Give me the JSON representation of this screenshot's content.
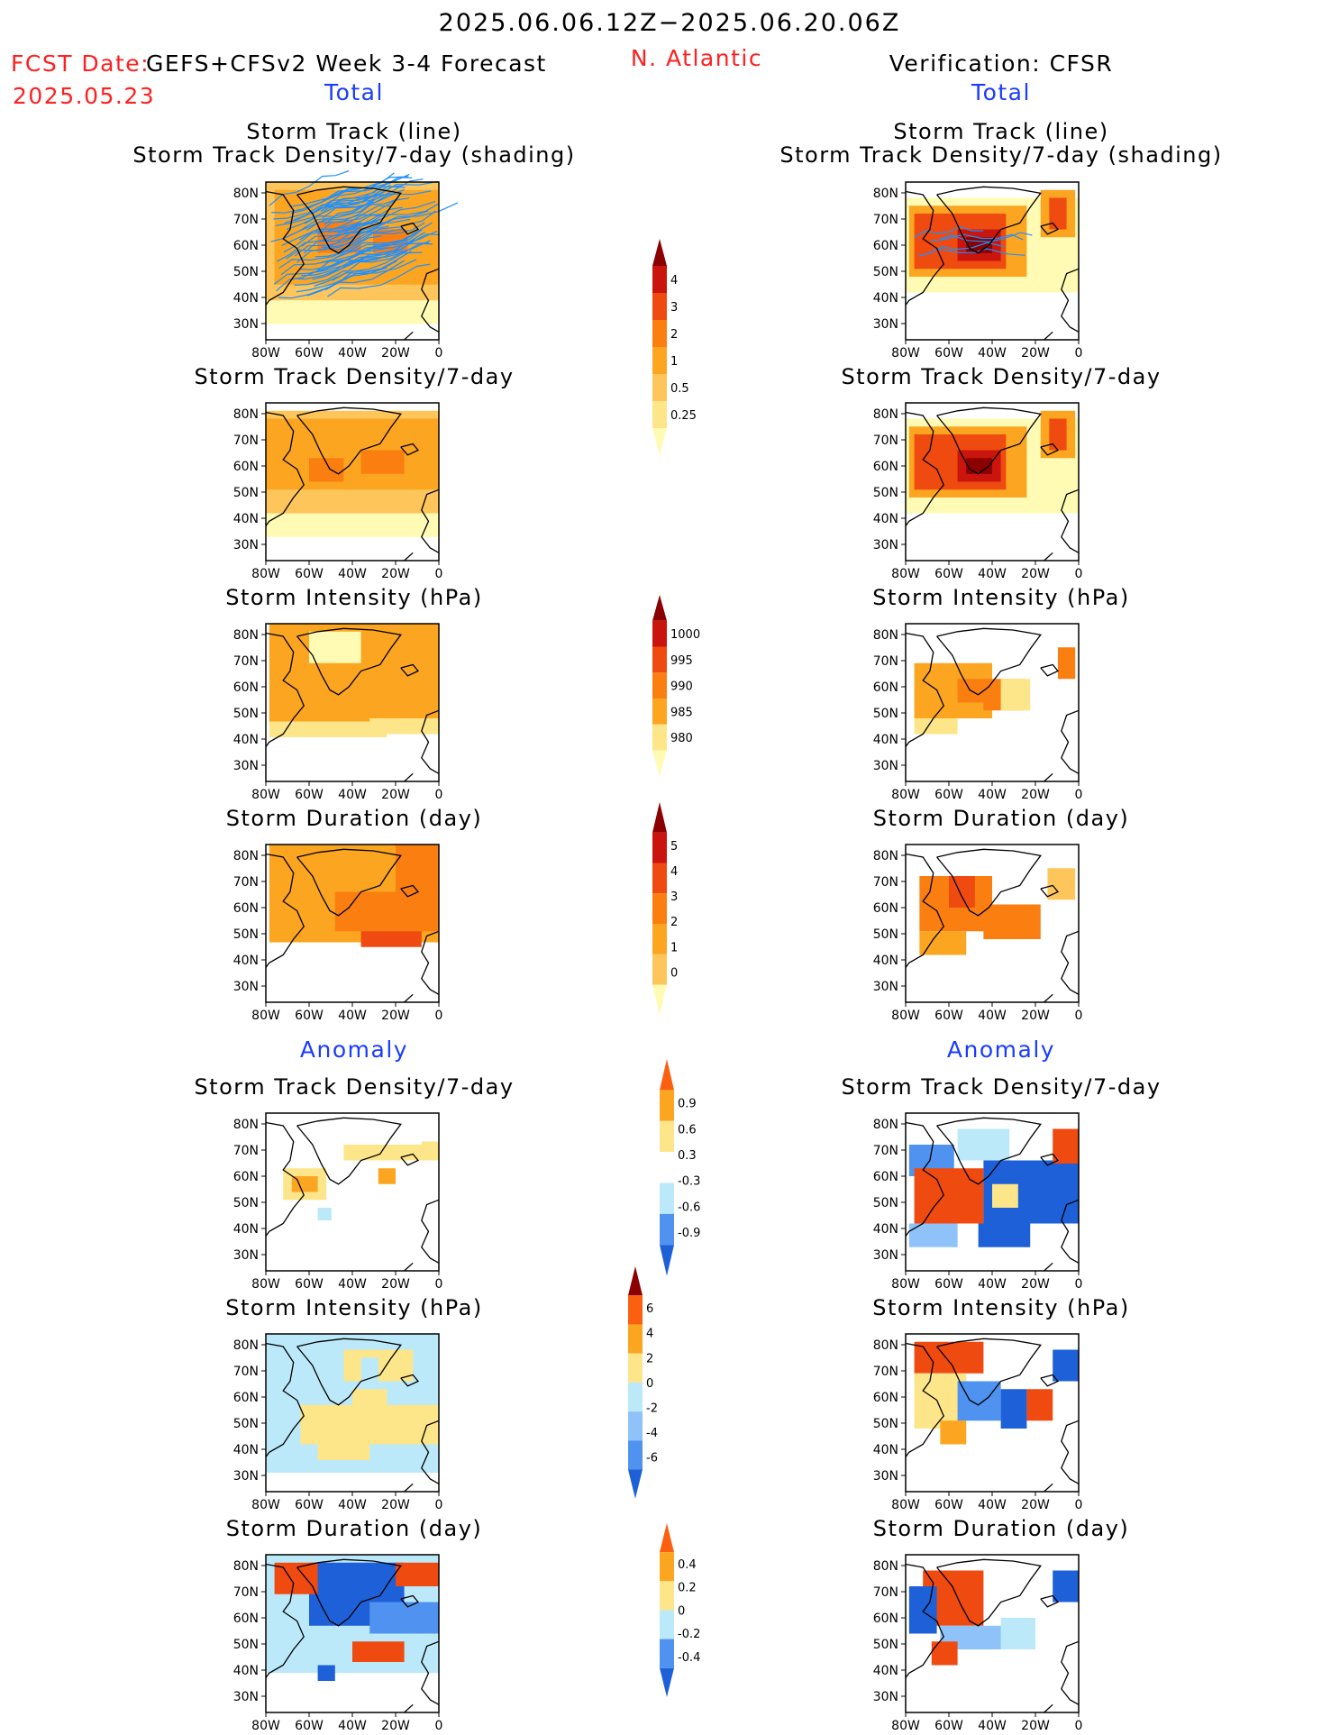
{
  "header": {
    "period": "2025.06.06.12Z−2025.06.20.06Z",
    "fcst_label": "FCST Date:",
    "fcst_date": "2025.05.23",
    "model": "GEFS+CFSv2 Week 3-4 Forecast",
    "region": "N. Atlantic",
    "verification": "Verification: CFSR",
    "total_left": "Total",
    "total_right": "Total",
    "anomaly_left": "Anomaly",
    "anomaly_right": "Anomaly"
  },
  "panel_titles": {
    "track_line": "Storm Track (line)",
    "track_shading": "Storm Track Density/7-day (shading)",
    "density": "Storm Track Density/7-day",
    "intensity": "Storm Intensity (hPa)",
    "duration": "Storm Duration (day)"
  },
  "axes": {
    "lat_ticks": [
      "80N",
      "70N",
      "60N",
      "50N",
      "40N",
      "30N"
    ],
    "lon_ticks": [
      "80W",
      "60W",
      "40W",
      "20W",
      "0"
    ]
  },
  "colors": {
    "track_line": "#1e90ff",
    "coast": "#000000"
  },
  "colorbars": [
    {
      "id": "cb1",
      "colors": [
        "#fffbb4",
        "#fde58a",
        "#fdc55a",
        "#fca520",
        "#fb7e10",
        "#ef4a10",
        "#c9150d",
        "#8b0000"
      ],
      "labels": [
        "0.25",
        "0.5",
        "1",
        "2",
        "3",
        "4"
      ],
      "low_tail": false
    },
    {
      "id": "cb2",
      "colors": [
        "#8b0000",
        "#c9150d",
        "#ef4a10",
        "#fb7e10",
        "#fca520",
        "#fde58a",
        "#fffbb4"
      ],
      "labels": [
        "980",
        "985",
        "990",
        "995",
        "1000"
      ],
      "low_tail": true
    },
    {
      "id": "cb3",
      "colors": [
        "#fffbb4",
        "#fdc55a",
        "#fca520",
        "#fb7e10",
        "#ef4a10",
        "#c9150d",
        "#8b0000"
      ],
      "labels": [
        "0",
        "1",
        "2",
        "3",
        "4",
        "5"
      ],
      "low_tail": false
    },
    {
      "id": "cb4",
      "colors": [
        "#1e60d8",
        "#4f92f0",
        "#bce9fa",
        "#ffffff",
        "#fde58a",
        "#fca520",
        "#fb6010"
      ],
      "labels": [
        "-0.9",
        "-0.6",
        "-0.3",
        "0.3",
        "0.6",
        "0.9"
      ],
      "sym": true
    },
    {
      "id": "cb5",
      "colors": [
        "#1e60d8",
        "#4f92f0",
        "#8fc2f8",
        "#bce9fa",
        "#fde58a",
        "#fca520",
        "#fb6010",
        "#8b0000"
      ],
      "labels": [
        "-6",
        "-4",
        "-2",
        "0",
        "2",
        "4",
        "6"
      ],
      "sym": true
    },
    {
      "id": "cb6",
      "colors": [
        "#1e60d8",
        "#4f92f0",
        "#bce9fa",
        "#fde58a",
        "#fca520",
        "#fb6010"
      ],
      "labels": [
        "-0.4",
        "-0.2",
        "0",
        "0.2",
        "0.4"
      ],
      "sym": true
    }
  ],
  "chart_data": [
    {
      "type": "heatmap",
      "title": "Storm Track (line) / Storm Track Density/7-day (shading)",
      "source": "GEFS+CFSv2 forecast",
      "field": "density_shading_with_tracks",
      "levels": [
        0.25,
        0.5,
        1,
        2,
        3,
        4
      ]
    },
    {
      "type": "heatmap",
      "title": "Storm Track (line) / Storm Track Density/7-day (shading)",
      "source": "CFSR verification",
      "field": "density_shading_with_tracks",
      "levels": [
        0.25,
        0.5,
        1,
        2,
        3,
        4
      ]
    },
    {
      "type": "heatmap",
      "title": "Storm Track Density/7-day",
      "source": "GEFS+CFSv2 forecast",
      "levels": [
        0.25,
        0.5,
        1,
        2,
        3,
        4
      ]
    },
    {
      "type": "heatmap",
      "title": "Storm Track Density/7-day",
      "source": "CFSR verification",
      "levels": [
        0.25,
        0.5,
        1,
        2,
        3,
        4
      ]
    },
    {
      "type": "heatmap",
      "title": "Storm Intensity (hPa)",
      "source": "GEFS+CFSv2 forecast",
      "levels": [
        980,
        985,
        990,
        995,
        1000
      ]
    },
    {
      "type": "heatmap",
      "title": "Storm Intensity (hPa)",
      "source": "CFSR verification",
      "levels": [
        980,
        985,
        990,
        995,
        1000
      ]
    },
    {
      "type": "heatmap",
      "title": "Storm Duration (day)",
      "source": "GEFS+CFSv2 forecast",
      "levels": [
        0,
        1,
        2,
        3,
        4,
        5
      ]
    },
    {
      "type": "heatmap",
      "title": "Storm Duration (day)",
      "source": "CFSR verification",
      "levels": [
        0,
        1,
        2,
        3,
        4,
        5
      ]
    },
    {
      "type": "heatmap",
      "title": "Anomaly Storm Track Density/7-day",
      "source": "GEFS+CFSv2 forecast",
      "levels": [
        -0.9,
        -0.6,
        -0.3,
        0.3,
        0.6,
        0.9
      ]
    },
    {
      "type": "heatmap",
      "title": "Anomaly Storm Track Density/7-day",
      "source": "CFSR verification",
      "levels": [
        -0.9,
        -0.6,
        -0.3,
        0.3,
        0.6,
        0.9
      ]
    },
    {
      "type": "heatmap",
      "title": "Anomaly Storm Intensity (hPa)",
      "source": "GEFS+CFSv2 forecast",
      "levels": [
        -6,
        -4,
        -2,
        0,
        2,
        4,
        6
      ]
    },
    {
      "type": "heatmap",
      "title": "Anomaly Storm Intensity (hPa)",
      "source": "CFSR verification",
      "levels": [
        -6,
        -4,
        -2,
        0,
        2,
        4,
        6
      ]
    },
    {
      "type": "heatmap",
      "title": "Anomaly Storm Duration (day)",
      "source": "GEFS+CFSv2 forecast",
      "levels": [
        -0.4,
        -0.2,
        0,
        0.2,
        0.4
      ]
    },
    {
      "type": "heatmap",
      "title": "Anomaly Storm Duration (day)",
      "source": "CFSR verification",
      "levels": [
        -0.4,
        -0.2,
        0,
        0.2,
        0.4
      ]
    }
  ]
}
